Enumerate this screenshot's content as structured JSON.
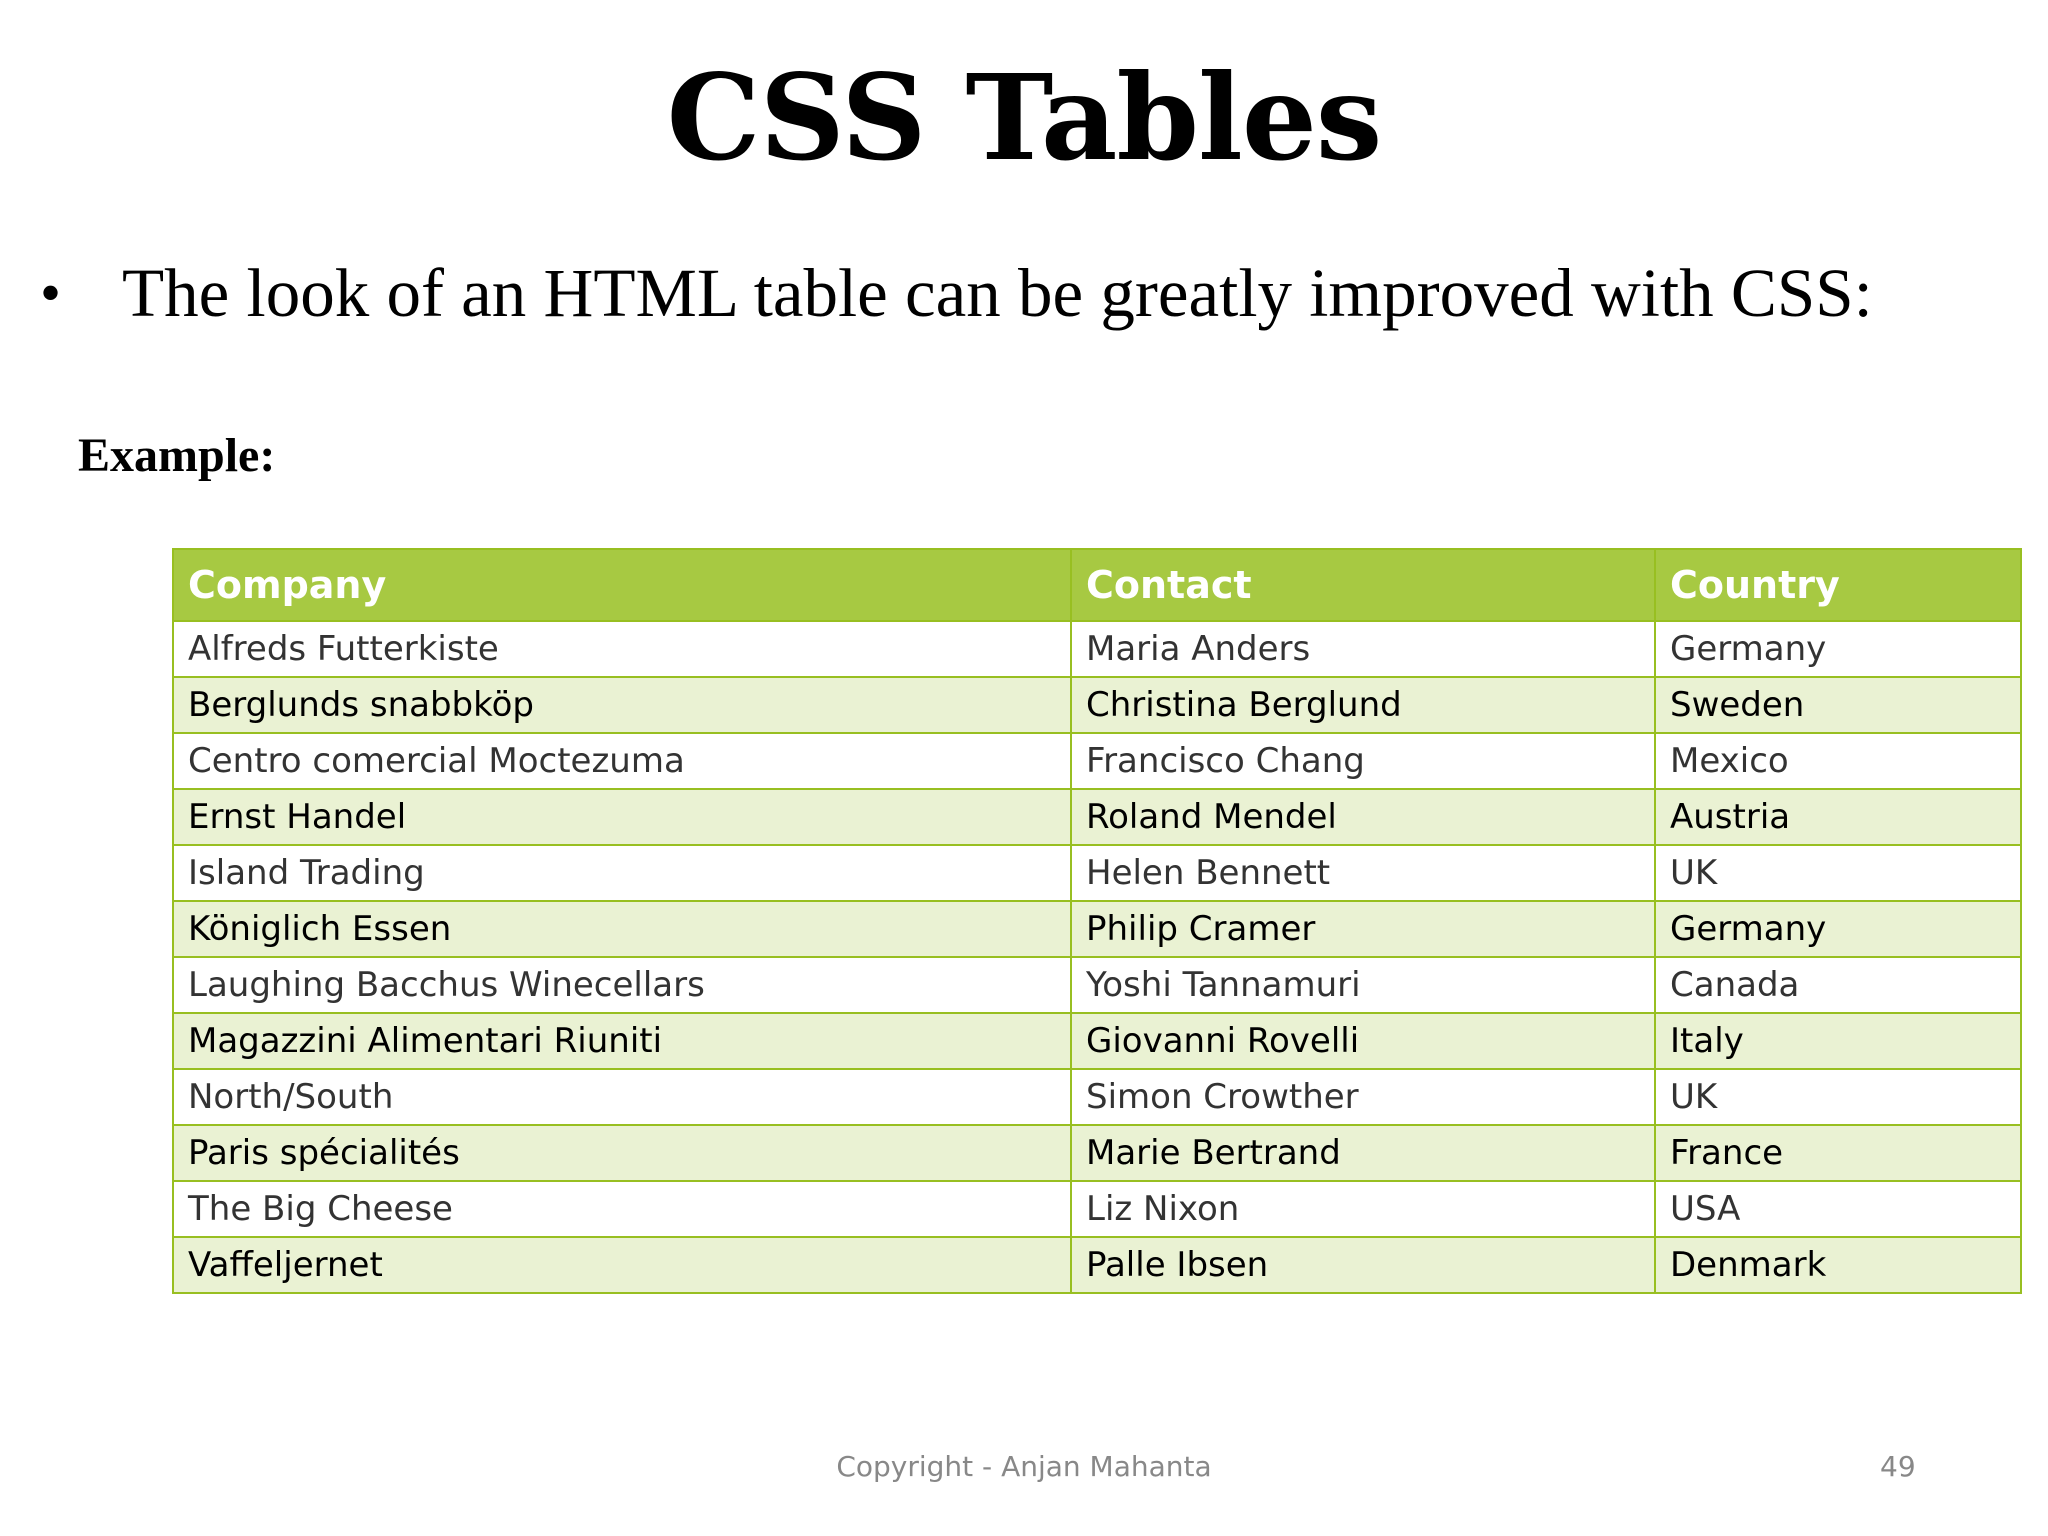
{
  "slide": {
    "title": "CSS Tables",
    "bullet_symbol": "•",
    "bullet_text": "The look of an HTML table can be greatly improved with CSS:",
    "example_label": "Example:",
    "footer": "Copyright - Anjan Mahanta",
    "page_number": "49"
  },
  "table": {
    "headers": [
      "Company",
      "Contact",
      "Country"
    ],
    "header_color": "#a7c942",
    "alt_row_color": "#eaf2d3",
    "border_color": "#98bf21",
    "rows": [
      [
        "Alfreds Futterkiste",
        "Maria Anders",
        "Germany"
      ],
      [
        "Berglunds snabbköp",
        "Christina Berglund",
        "Sweden"
      ],
      [
        "Centro comercial Moctezuma",
        "Francisco Chang",
        "Mexico"
      ],
      [
        "Ernst Handel",
        "Roland Mendel",
        "Austria"
      ],
      [
        "Island Trading",
        "Helen Bennett",
        "UK"
      ],
      [
        "Königlich Essen",
        "Philip Cramer",
        "Germany"
      ],
      [
        "Laughing Bacchus Winecellars",
        "Yoshi Tannamuri",
        "Canada"
      ],
      [
        "Magazzini Alimentari Riuniti",
        "Giovanni Rovelli",
        "Italy"
      ],
      [
        "North/South",
        "Simon Crowther",
        "UK"
      ],
      [
        "Paris spécialités",
        "Marie Bertrand",
        "France"
      ],
      [
        "The Big Cheese",
        "Liz Nixon",
        "USA"
      ],
      [
        "Vaffeljernet",
        "Palle Ibsen",
        "Denmark"
      ]
    ]
  }
}
